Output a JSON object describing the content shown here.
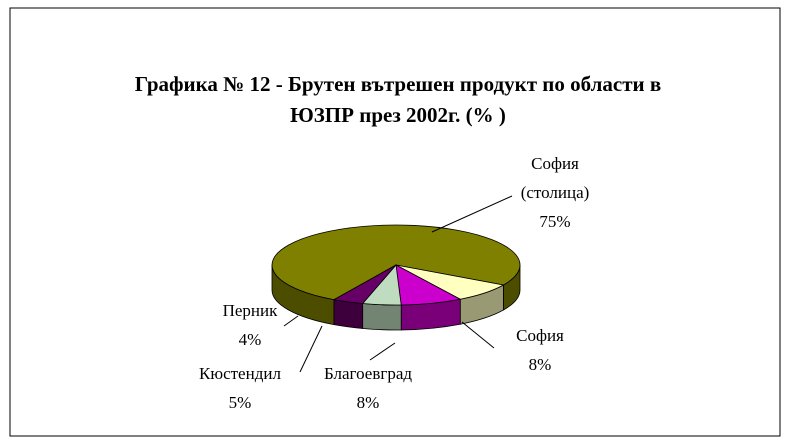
{
  "chart_data": {
    "type": "pie3d",
    "title": "Графика № 12 - Брутен вътрешен продукт по области в ЮЗПР през 2002г. (% )",
    "categories": [
      "София (столица)",
      "София",
      "Благоевград",
      "Кюстендил",
      "Перник"
    ],
    "values": [
      75,
      8,
      8,
      5,
      4
    ],
    "value_labels": [
      "75%",
      "8%",
      "8%",
      "5%",
      "4%"
    ],
    "colors": [
      "#808000",
      "#ffffc0",
      "#cc00cc",
      "#c0dcc0",
      "#660066"
    ]
  }
}
